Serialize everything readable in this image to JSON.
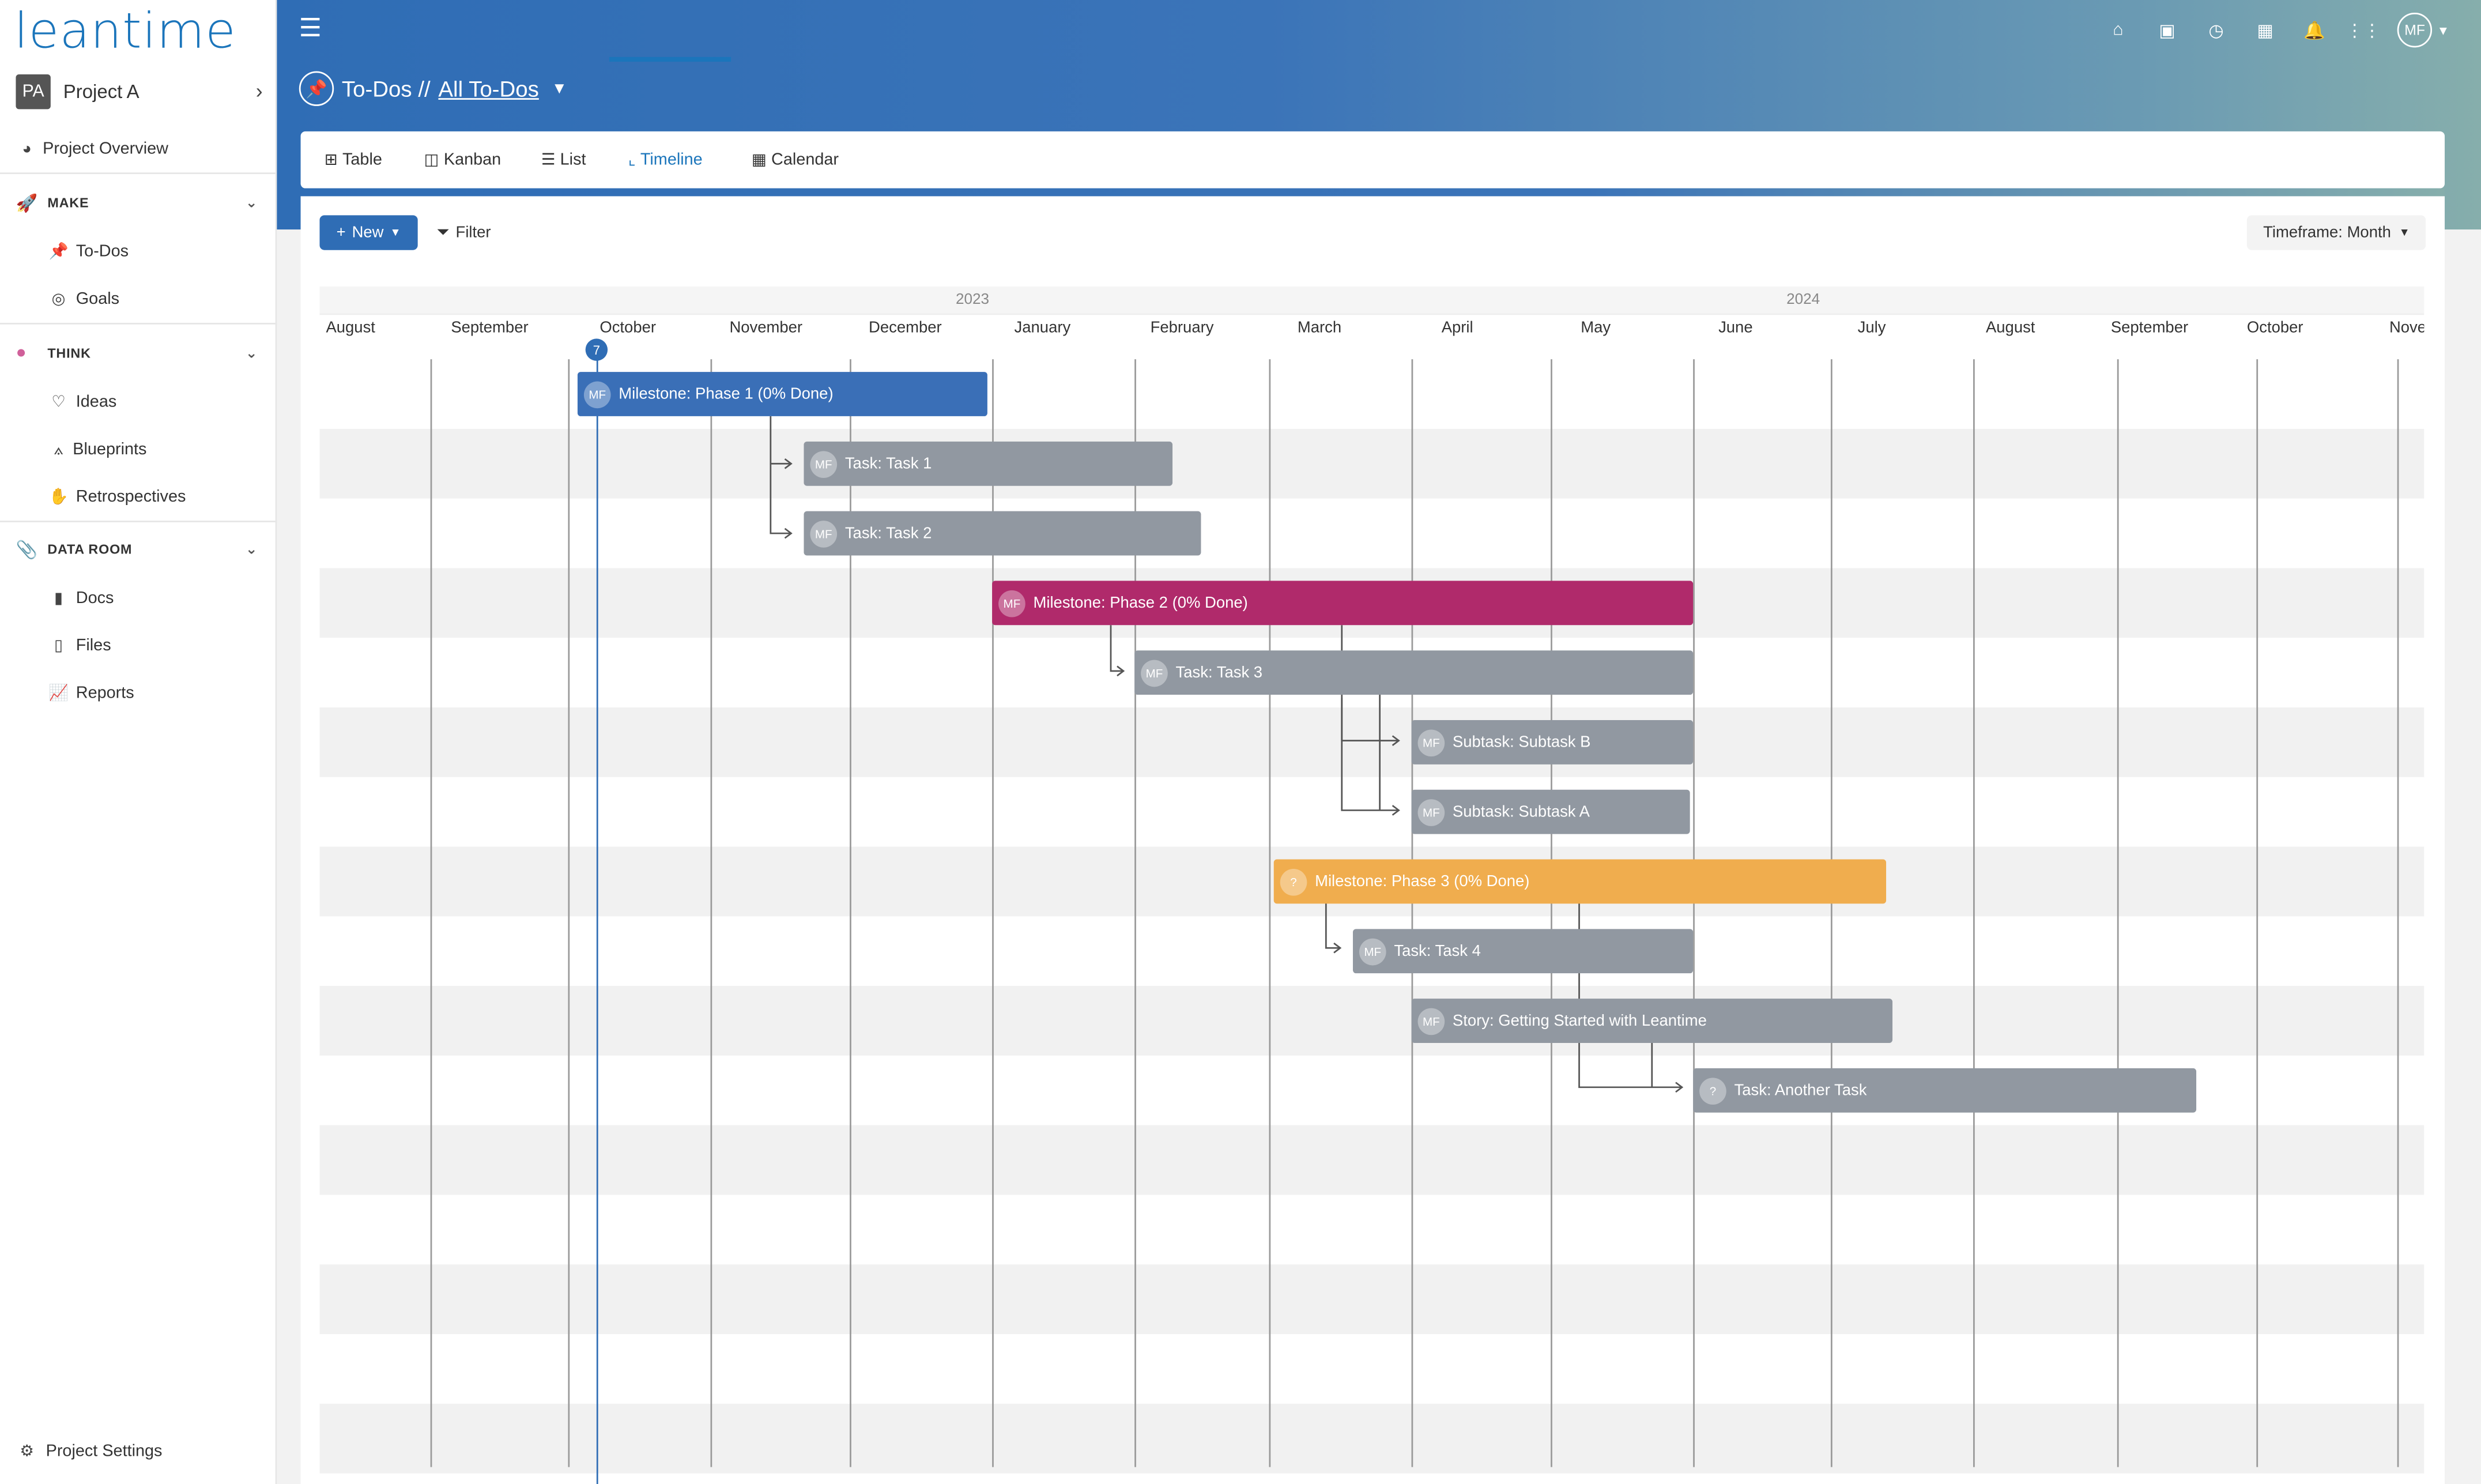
{
  "app": {
    "logo": "leantime"
  },
  "project": {
    "badge": "PA",
    "name": "Project A",
    "chevron": "›"
  },
  "sidebar": {
    "overview": "Project Overview",
    "sections": [
      {
        "label": "MAKE",
        "icon": "rocket-icon",
        "items": [
          "To-Dos",
          "Goals"
        ]
      },
      {
        "label": "THINK",
        "icon": "brain-icon",
        "items": [
          "Ideas",
          "Blueprints",
          "Retrospectives"
        ]
      },
      {
        "label": "DATA ROOM",
        "icon": "paperclip-icon",
        "items": [
          "Docs",
          "Files",
          "Reports"
        ]
      }
    ],
    "settings": "Project Settings"
  },
  "header": {
    "title": "To-Dos //",
    "view_link": "All To-Dos",
    "user_initials": "MF",
    "icons": [
      "home-icon",
      "briefcase-icon",
      "clock-icon",
      "calendar-icon",
      "bell-icon",
      "apps-icon"
    ]
  },
  "tabs": [
    {
      "label": "Table",
      "icon": "table-icon"
    },
    {
      "label": "Kanban",
      "icon": "kanban-icon"
    },
    {
      "label": "List",
      "icon": "list-icon"
    },
    {
      "label": "Timeline",
      "icon": "timeline-icon",
      "active": true
    },
    {
      "label": "Calendar",
      "icon": "calendar-icon"
    }
  ],
  "toolbar": {
    "new_label": "New",
    "filter_label": "Filter",
    "timeframe_label": "Timeframe: Month"
  },
  "timeline": {
    "years": [
      "2023",
      "2024"
    ],
    "months": [
      "August",
      "September",
      "October",
      "November",
      "December",
      "January",
      "February",
      "March",
      "April",
      "May",
      "June",
      "July",
      "August",
      "September",
      "October",
      "Nove"
    ],
    "today_label": "7",
    "colors": {
      "milestone1": "#3a6fb7",
      "milestone2": "#b02a6b",
      "milestone3": "#f0ad4e",
      "task": "#9198a1"
    },
    "bars": [
      {
        "label": "Milestone: Phase 1 (0% Done)",
        "avatar": "MF",
        "type": "milestone1"
      },
      {
        "label": "Task: Task 1",
        "avatar": "MF",
        "type": "task"
      },
      {
        "label": "Task: Task 2",
        "avatar": "MF",
        "type": "task"
      },
      {
        "label": "Milestone: Phase 2 (0% Done)",
        "avatar": "MF",
        "type": "milestone2"
      },
      {
        "label": "Task: Task 3",
        "avatar": "MF",
        "type": "task"
      },
      {
        "label": "Subtask: Subtask B",
        "avatar": "MF",
        "type": "task"
      },
      {
        "label": "Subtask: Subtask A",
        "avatar": "MF",
        "type": "task"
      },
      {
        "label": "Milestone: Phase 3 (0% Done)",
        "avatar": "?",
        "type": "milestone3"
      },
      {
        "label": "Task: Task 4",
        "avatar": "MF",
        "type": "task"
      },
      {
        "label": "Story: Getting Started with Leantime",
        "avatar": "MF",
        "type": "task"
      },
      {
        "label": "Task: Another Task",
        "avatar": "?",
        "type": "task"
      }
    ]
  }
}
